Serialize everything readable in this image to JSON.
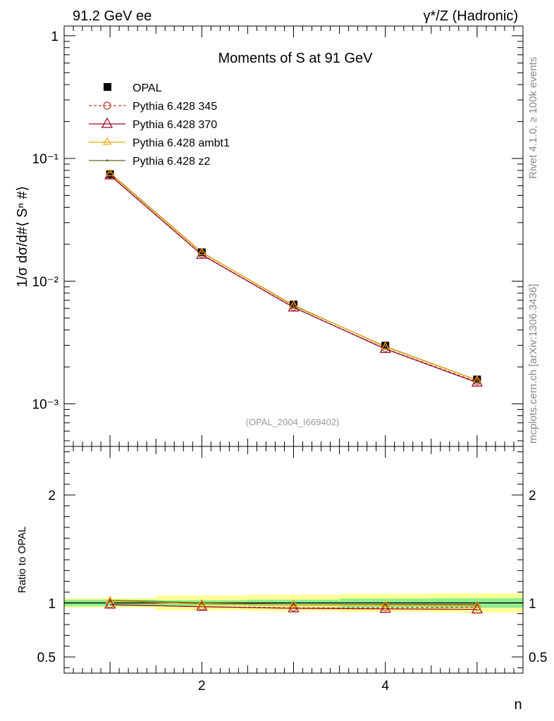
{
  "header": {
    "left": "91.2 GeV ee",
    "right": "γ*/Z (Hadronic)"
  },
  "side_labels": {
    "rivet": "Rivet 4.1.0, ≥ 100k events",
    "mcplots": "mcplots.cern.ch [arXiv:1306.3436]"
  },
  "colors": {
    "opal": "#000000",
    "p345": "#c0392b",
    "p370": "#9b0e2a",
    "ambt1": "#f0a30a",
    "z2": "#5a6a10",
    "band_inner": "#90ee90",
    "band_outer": "#ffff99"
  },
  "chart_data": [
    {
      "type": "line",
      "title": "Moments of S at 91 GeV",
      "ylabel": "1/σ  dσ/d#⟨ Sⁿ #⟩",
      "xlabel": "n",
      "yscale": "log",
      "xlim": [
        0.5,
        5.5
      ],
      "ylim": [
        0.00045,
        1.2
      ],
      "yticks": [
        {
          "value": 1,
          "label": "1"
        },
        {
          "value": 0.1,
          "label": "10⁻¹"
        },
        {
          "value": 0.01,
          "label": "10⁻²"
        },
        {
          "value": 0.001,
          "label": "10⁻³"
        }
      ],
      "watermark": "(OPAL_2004_I669402)",
      "x": [
        1,
        2,
        3,
        4,
        5
      ],
      "series": [
        {
          "name": "OPAL",
          "key": "opal",
          "values": [
            0.0745,
            0.0172,
            0.00645,
            0.00298,
            0.00158
          ]
        },
        {
          "name": "Pythia 6.428 345",
          "key": "p345",
          "values": [
            0.073,
            0.0165,
            0.00612,
            0.00282,
            0.00151
          ]
        },
        {
          "name": "Pythia 6.428 370",
          "key": "p370",
          "values": [
            0.0728,
            0.0164,
            0.0061,
            0.0028,
            0.00149
          ]
        },
        {
          "name": "Pythia 6.428 ambt1",
          "key": "ambt1",
          "values": [
            0.0752,
            0.0171,
            0.00638,
            0.00292,
            0.00156
          ]
        },
        {
          "name": "Pythia 6.428 z2",
          "key": "z2",
          "values": [
            0.076,
            0.0172,
            0.00632,
            0.00294,
            0.00156
          ]
        }
      ]
    },
    {
      "type": "line",
      "ylabel": "Ratio to OPAL",
      "xlabel": "n",
      "xlim": [
        0.5,
        5.5
      ],
      "ylim": [
        0.35,
        2.45
      ],
      "xticks": [
        2,
        4
      ],
      "yticks": [
        {
          "value": 0.5,
          "label": "0.5"
        },
        {
          "value": 1,
          "label": "1"
        },
        {
          "value": 2,
          "label": "2"
        }
      ],
      "x": [
        1,
        2,
        3,
        4,
        5
      ],
      "bands": {
        "inner": [
          [
            0.97,
            1.03
          ],
          [
            0.975,
            1.025
          ],
          [
            0.97,
            1.03
          ],
          [
            0.96,
            1.04
          ],
          [
            0.955,
            1.045
          ]
        ],
        "outer": [
          [
            0.955,
            1.045
          ],
          [
            0.93,
            1.07
          ],
          [
            0.925,
            1.075
          ],
          [
            0.915,
            1.085
          ],
          [
            0.91,
            1.09
          ]
        ]
      },
      "series": [
        {
          "name": "Pythia 6.428 345",
          "key": "p345",
          "values": [
            0.985,
            0.965,
            0.955,
            0.955,
            0.96
          ]
        },
        {
          "name": "Pythia 6.428 370",
          "key": "p370",
          "values": [
            0.985,
            0.965,
            0.95,
            0.945,
            0.94
          ]
        },
        {
          "name": "Pythia 6.428 ambt1",
          "key": "ambt1",
          "values": [
            1.02,
            0.99,
            0.985,
            0.98,
            0.975
          ]
        },
        {
          "name": "Pythia 6.428 z2",
          "key": "z2",
          "values": [
            1.025,
            1.0,
            0.985,
            0.985,
            0.985
          ]
        }
      ]
    }
  ]
}
